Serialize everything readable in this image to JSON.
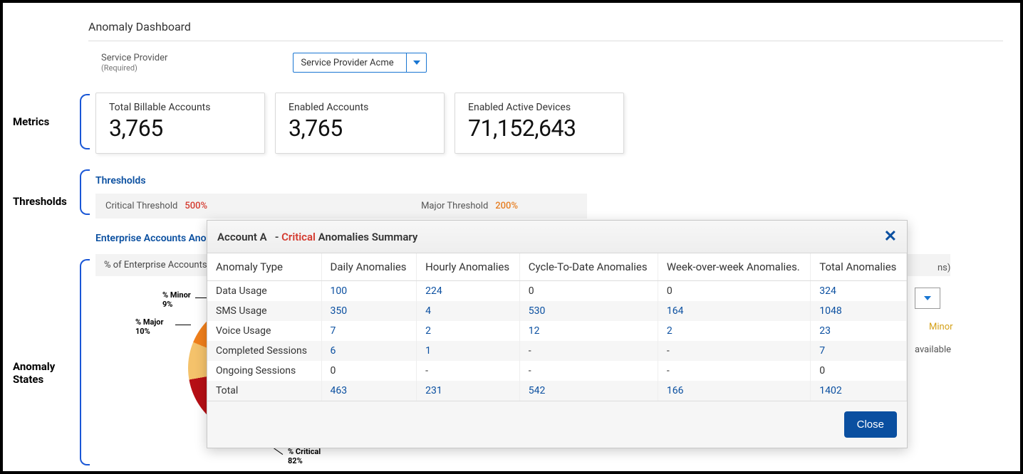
{
  "page": {
    "title": "Anomaly Dashboard"
  },
  "serviceProvider": {
    "label": "Service Provider",
    "required_text": "(Required)",
    "selected": "Service Provider Acme"
  },
  "sideLabels": {
    "metrics": "Metrics",
    "thresholds": "Thresholds",
    "anomalyStates1": "Anomaly",
    "anomalyStates2": "States"
  },
  "metrics": [
    {
      "title": "Total Billable Accounts",
      "value": "3,765"
    },
    {
      "title": "Enabled Accounts",
      "value": "3,765"
    },
    {
      "title": "Enabled Active Devices",
      "value": "71,152,643"
    }
  ],
  "thresholds": {
    "heading": "Thresholds",
    "critical_label": "Critical Threshold",
    "critical_value": "500%",
    "major_label": "Major Threshold",
    "major_value": "200%",
    "colors": {
      "critical": "#d43a2f",
      "major": "#e67e22"
    }
  },
  "enterprise": {
    "heading_partial": "Enterprise Accounts Anor",
    "pct_bar_text": "% of Enterprise Accounts"
  },
  "pie": {
    "slices": [
      {
        "label": "% Critical",
        "value": 82,
        "color": "#d8141c",
        "inner_color": "#b60f15"
      },
      {
        "label": "% Major",
        "value": 10,
        "color": "#f07f1b"
      },
      {
        "label": "% Minor",
        "value": 9,
        "color_hint": "hidden"
      }
    ],
    "labels": {
      "minor": "% Minor",
      "minor_val": "9%",
      "major": "% Major",
      "major_val": "10%",
      "critical": "% Critical",
      "critical_val": "82%"
    }
  },
  "rightHints": {
    "ns_text": "ns)",
    "minor_legend": "Minor",
    "available_text": "available"
  },
  "modal": {
    "account": "Account A",
    "sep": " - ",
    "crit": "Critical",
    "suffix": " Anomalies Summary",
    "close_symbol": "✕",
    "columns": [
      "Anomaly Type",
      "Daily Anomalies",
      "Hourly Anomalies",
      "Cycle-To-Date Anomalies",
      "Week-over-week Anomalies.",
      "Total Anomalies"
    ],
    "rows": [
      {
        "type": "Data Usage",
        "cells": [
          "100",
          "224",
          "0",
          "0",
          "324"
        ],
        "link_mask": [
          1,
          1,
          0,
          0,
          1
        ]
      },
      {
        "type": "SMS Usage",
        "cells": [
          "350",
          "4",
          "530",
          "164",
          "1048"
        ],
        "link_mask": [
          1,
          1,
          1,
          1,
          1
        ]
      },
      {
        "type": "Voice Usage",
        "cells": [
          "7",
          "2",
          "12",
          "2",
          "23"
        ],
        "link_mask": [
          1,
          1,
          1,
          1,
          1
        ]
      },
      {
        "type": "Completed Sessions",
        "cells": [
          "6",
          "1",
          "-",
          "-",
          "7"
        ],
        "link_mask": [
          1,
          1,
          0,
          0,
          1
        ]
      },
      {
        "type": "Ongoing Sessions",
        "cells": [
          "0",
          "-",
          "-",
          "-",
          "0"
        ],
        "link_mask": [
          0,
          0,
          0,
          0,
          0
        ]
      },
      {
        "type": "Total",
        "cells": [
          "463",
          "231",
          "542",
          "166",
          "1402"
        ],
        "link_mask": [
          1,
          1,
          1,
          1,
          1
        ]
      }
    ],
    "close_btn": "Close"
  }
}
